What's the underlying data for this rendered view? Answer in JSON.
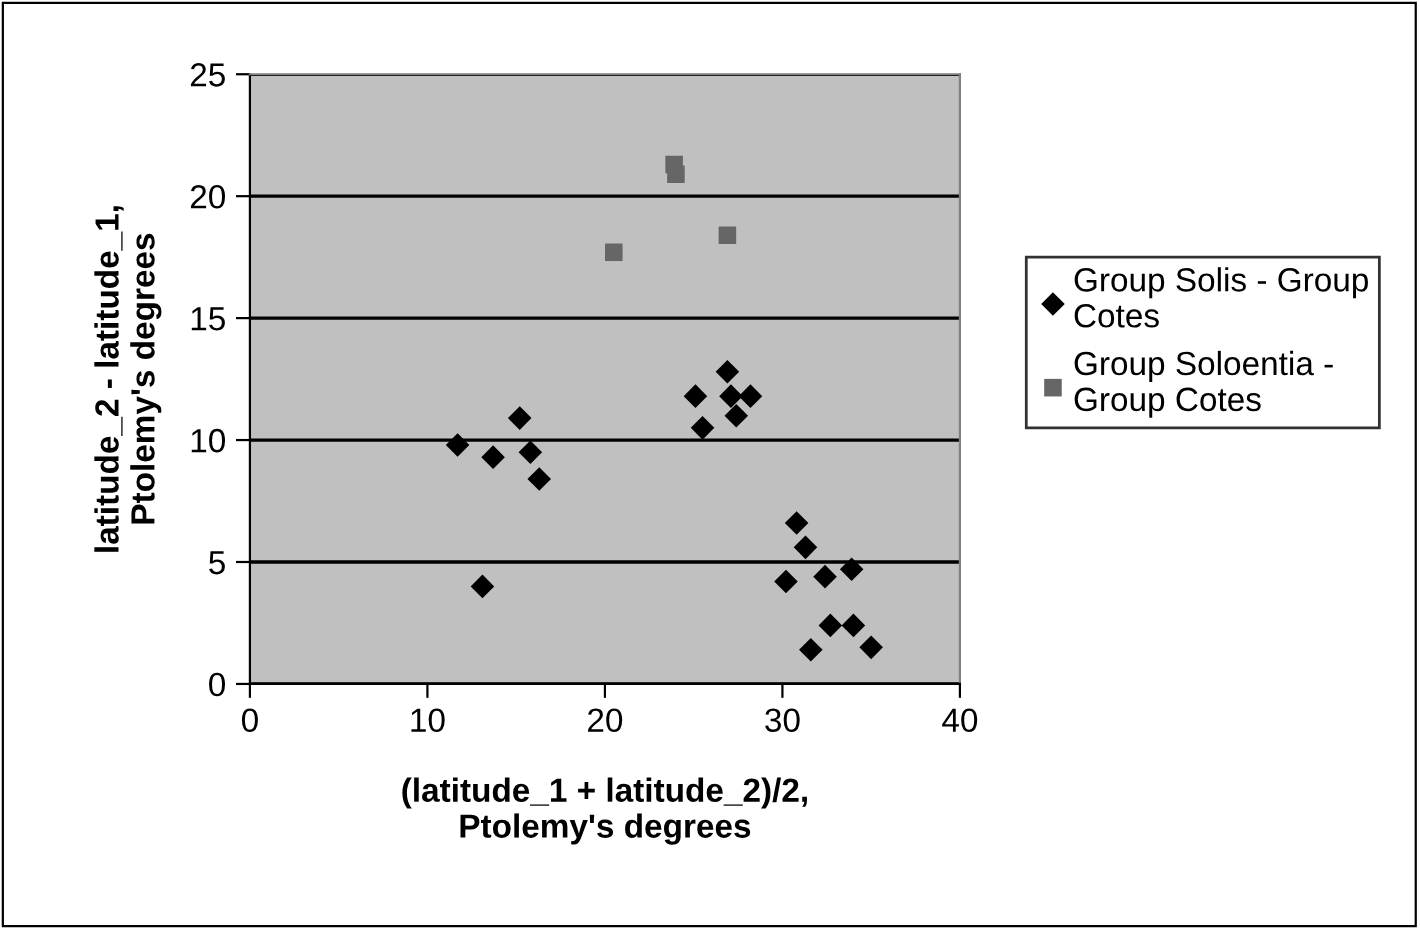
{
  "chart_data": {
    "type": "scatter",
    "xlabel": "(latitude_1 + latitude_2)/2,\nPtolemy's degrees",
    "ylabel": "latitude_2 - latitude_1,\nPtolemy's degrees",
    "xlim": [
      0,
      40
    ],
    "xticks": [
      0,
      10,
      20,
      30,
      40
    ],
    "ylim": [
      0,
      25
    ],
    "yticks": [
      0,
      5,
      10,
      15,
      20,
      25
    ],
    "grid": "y",
    "legend": "right",
    "series": [
      {
        "name": "Group Solis - Group Cotes",
        "color": "#000000",
        "marker": "diamond",
        "x": [
          11.7,
          13.7,
          15.2,
          15.8,
          16.3,
          13.1,
          25.1,
          25.5,
          26.9,
          27.1,
          27.4,
          28.2,
          30.8,
          31.3,
          30.2,
          32.4,
          33.9,
          32.7,
          34.0,
          31.6,
          35.0
        ],
        "values": [
          9.8,
          9.3,
          10.9,
          9.5,
          8.4,
          4.0,
          11.8,
          10.5,
          12.8,
          11.8,
          11.0,
          11.8,
          6.6,
          5.6,
          4.2,
          4.4,
          4.7,
          2.4,
          2.4,
          1.4,
          1.5
        ]
      },
      {
        "name": "Group Soloentia - Group Cotes",
        "color": "#666666",
        "marker": "square",
        "x": [
          23.9,
          24.0,
          20.5,
          26.9
        ],
        "values": [
          21.3,
          20.9,
          17.7,
          18.4
        ]
      }
    ]
  }
}
